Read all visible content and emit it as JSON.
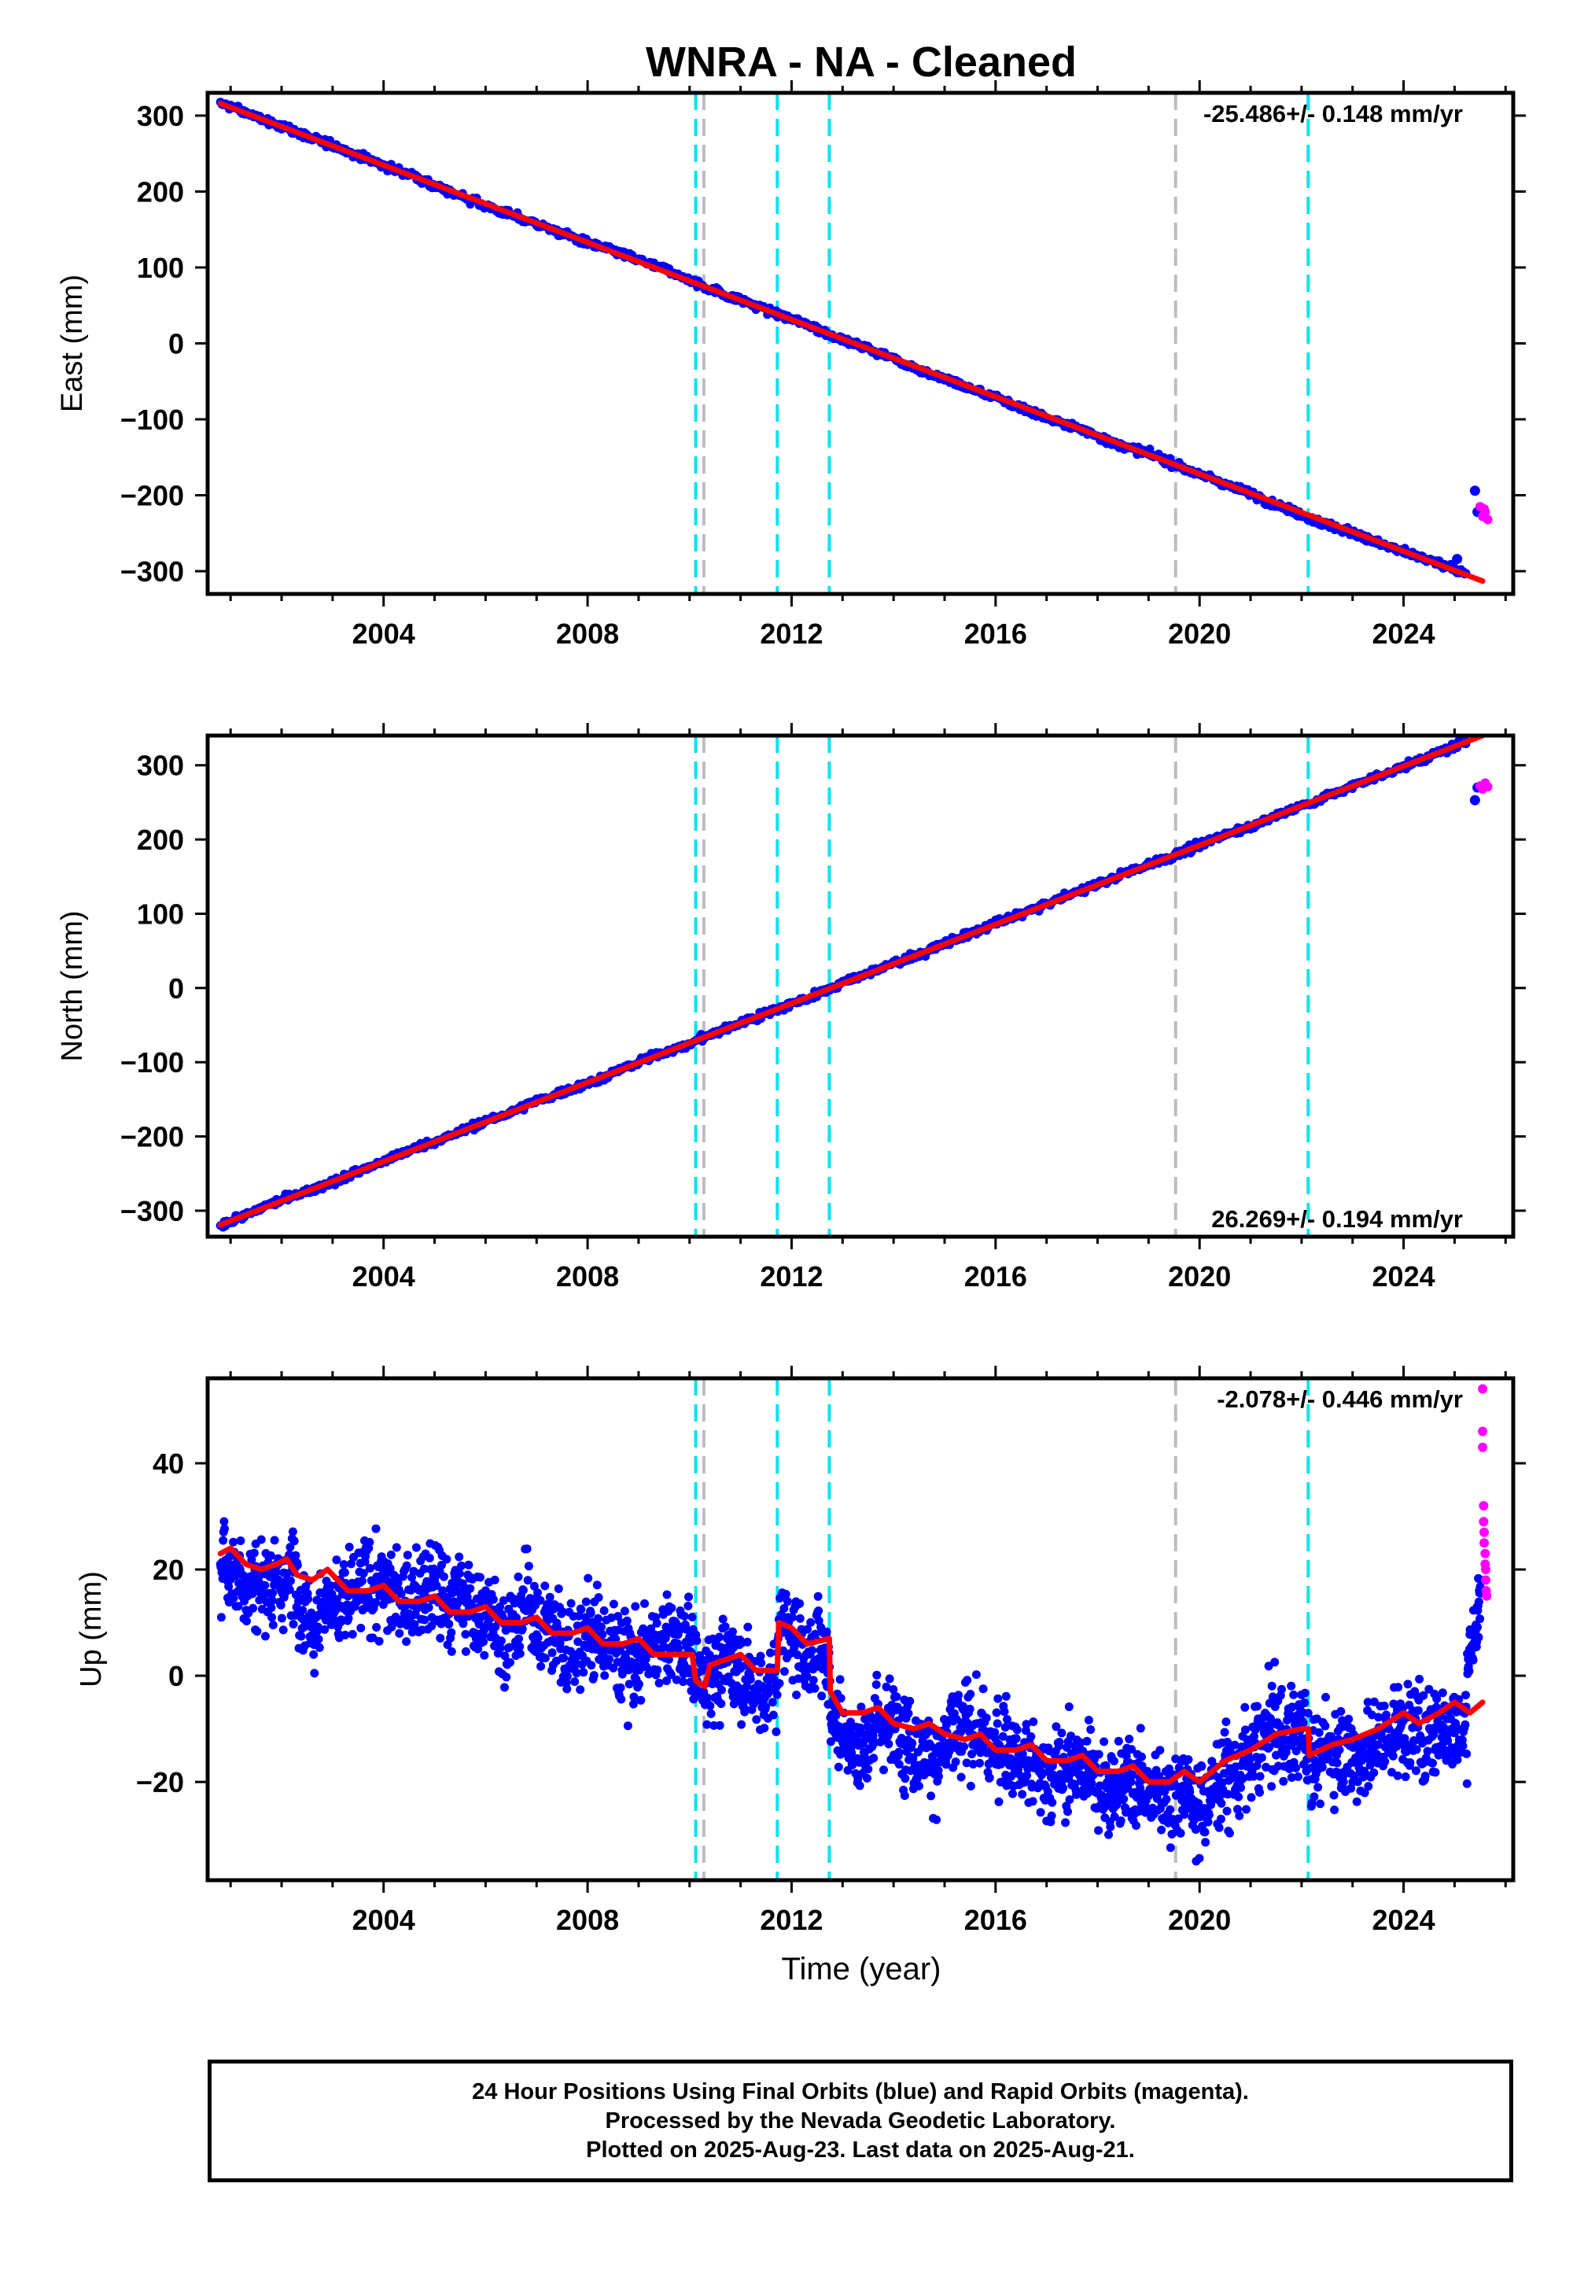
{
  "title": "WNRA  - NA - Cleaned",
  "x_axis_label": "Time (year)",
  "footer": {
    "line1": "24 Hour Positions Using Final Orbits (blue) and Rapid Orbits (magenta).",
    "line2": "Processed by the Nevada Geodetic Laboratory.",
    "line3": "Plotted on 2025-Aug-23. Last data on 2025-Aug-21."
  },
  "colors": {
    "final_orbits": "#0000ff",
    "rapid_orbits": "#ff00ff",
    "model_fit": "#ff0000",
    "event_cyan": "#00e5ee",
    "event_gray": "#bdbdbd"
  },
  "events": [
    {
      "year": 2010.12,
      "color": "cyan"
    },
    {
      "year": 2010.28,
      "color": "gray"
    },
    {
      "year": 2011.72,
      "color": "cyan"
    },
    {
      "year": 2012.74,
      "color": "cyan"
    },
    {
      "year": 2019.53,
      "color": "gray"
    },
    {
      "year": 2022.13,
      "color": "cyan"
    }
  ],
  "chart_data": [
    {
      "type": "scatter",
      "ylabel": "East (mm)",
      "rate_label": "-25.486+/- 0.148 mm/yr",
      "rate_position": "top-right",
      "xlim": [
        2000.55,
        2026.15
      ],
      "ylim": [
        -330,
        330
      ],
      "x_ticks": [
        2004,
        2008,
        2012,
        2016,
        2020,
        2024
      ],
      "y_ticks": [
        -300,
        -200,
        -100,
        0,
        100,
        200,
        300
      ],
      "grid": false,
      "model_fit_points": [
        [
          2000.8,
          316
        ],
        [
          2025.55,
          -313
        ]
      ],
      "final_orbit_outliers": [
        [
          2025.05,
          -284
        ],
        [
          2025.4,
          -194
        ],
        [
          2025.45,
          -222
        ]
      ],
      "rapid_orbit_points": [
        [
          2025.5,
          -215
        ],
        [
          2025.55,
          -228
        ],
        [
          2025.6,
          -222
        ],
        [
          2025.65,
          -232
        ],
        [
          2025.58,
          -218
        ]
      ]
    },
    {
      "type": "scatter",
      "ylabel": "North (mm)",
      "rate_label": "26.269+/- 0.194 mm/yr",
      "rate_position": "bottom-right",
      "xlim": [
        2000.55,
        2026.15
      ],
      "ylim": [
        -335,
        340
      ],
      "x_ticks": [
        2004,
        2008,
        2012,
        2016,
        2020,
        2024
      ],
      "y_ticks": [
        -300,
        -200,
        -100,
        0,
        100,
        200,
        300
      ],
      "grid": false,
      "model_fit_points": [
        [
          2000.8,
          -319
        ],
        [
          2025.55,
          340
        ]
      ],
      "final_orbit_outliers": [
        [
          2025.4,
          253
        ],
        [
          2025.45,
          270
        ]
      ],
      "rapid_orbit_points": [
        [
          2025.5,
          272
        ],
        [
          2025.55,
          268
        ],
        [
          2025.6,
          276
        ],
        [
          2025.65,
          271
        ]
      ]
    },
    {
      "type": "scatter",
      "ylabel": "Up (mm)",
      "rate_label": "-2.078+/- 0.446 mm/yr",
      "rate_position": "top-right",
      "xlim": [
        2000.55,
        2026.15
      ],
      "ylim": [
        -38.5,
        56
      ],
      "x_ticks": [
        2004,
        2008,
        2012,
        2016,
        2020,
        2024
      ],
      "y_ticks": [
        -20,
        0,
        20,
        40
      ],
      "grid": false,
      "model_fit_points": [
        [
          2000.8,
          23
        ],
        [
          2001.0,
          24
        ],
        [
          2001.3,
          21
        ],
        [
          2001.6,
          20
        ],
        [
          2001.9,
          21
        ],
        [
          2002.1,
          22
        ],
        [
          2002.3,
          19
        ],
        [
          2002.6,
          18
        ],
        [
          2002.9,
          20
        ],
        [
          2003.1,
          18
        ],
        [
          2003.3,
          16
        ],
        [
          2003.7,
          16
        ],
        [
          2004.0,
          17
        ],
        [
          2004.3,
          14
        ],
        [
          2004.7,
          14
        ],
        [
          2005.0,
          15
        ],
        [
          2005.3,
          12
        ],
        [
          2005.7,
          12
        ],
        [
          2006.0,
          13
        ],
        [
          2006.3,
          10
        ],
        [
          2006.7,
          10
        ],
        [
          2007.0,
          11
        ],
        [
          2007.3,
          8
        ],
        [
          2007.7,
          8
        ],
        [
          2008.0,
          9
        ],
        [
          2008.3,
          6
        ],
        [
          2008.7,
          6
        ],
        [
          2009.0,
          7
        ],
        [
          2009.3,
          4
        ],
        [
          2009.7,
          4
        ],
        [
          2010.05,
          4
        ],
        [
          2010.12,
          -1
        ],
        [
          2010.3,
          -2
        ],
        [
          2010.4,
          2
        ],
        [
          2010.7,
          3
        ],
        [
          2011.0,
          4
        ],
        [
          2011.3,
          1
        ],
        [
          2011.6,
          1
        ],
        [
          2011.72,
          1
        ],
        [
          2011.75,
          10
        ],
        [
          2012.0,
          9
        ],
        [
          2012.3,
          6
        ],
        [
          2012.74,
          7
        ],
        [
          2012.76,
          -3
        ],
        [
          2013.0,
          -7
        ],
        [
          2013.4,
          -7
        ],
        [
          2013.7,
          -6
        ],
        [
          2014.0,
          -9
        ],
        [
          2014.4,
          -10
        ],
        [
          2014.7,
          -9
        ],
        [
          2015.0,
          -11
        ],
        [
          2015.4,
          -12
        ],
        [
          2015.7,
          -11
        ],
        [
          2016.0,
          -14
        ],
        [
          2016.4,
          -14
        ],
        [
          2016.7,
          -13
        ],
        [
          2017.0,
          -16
        ],
        [
          2017.4,
          -16
        ],
        [
          2017.7,
          -15
        ],
        [
          2018.0,
          -18
        ],
        [
          2018.4,
          -18
        ],
        [
          2018.7,
          -17
        ],
        [
          2019.0,
          -20
        ],
        [
          2019.4,
          -20
        ],
        [
          2019.7,
          -18
        ],
        [
          2020.0,
          -20
        ],
        [
          2020.5,
          -16
        ],
        [
          2021.0,
          -14
        ],
        [
          2021.5,
          -11
        ],
        [
          2022.0,
          -10
        ],
        [
          2022.13,
          -10
        ],
        [
          2022.15,
          -15
        ],
        [
          2022.6,
          -13
        ],
        [
          2023.0,
          -12
        ],
        [
          2023.5,
          -10
        ],
        [
          2024.0,
          -7
        ],
        [
          2024.3,
          -9
        ],
        [
          2024.7,
          -7
        ],
        [
          2025.0,
          -5
        ],
        [
          2025.3,
          -7
        ],
        [
          2025.55,
          -5
        ]
      ],
      "rapid_orbit_points": [
        [
          2025.55,
          54
        ],
        [
          2025.55,
          46
        ],
        [
          2025.55,
          43
        ],
        [
          2025.57,
          32
        ],
        [
          2025.57,
          29
        ],
        [
          2025.58,
          27
        ],
        [
          2025.58,
          25
        ],
        [
          2025.6,
          23
        ],
        [
          2025.6,
          21
        ],
        [
          2025.61,
          20
        ],
        [
          2025.61,
          18
        ],
        [
          2025.62,
          16
        ],
        [
          2025.63,
          15
        ]
      ]
    }
  ]
}
